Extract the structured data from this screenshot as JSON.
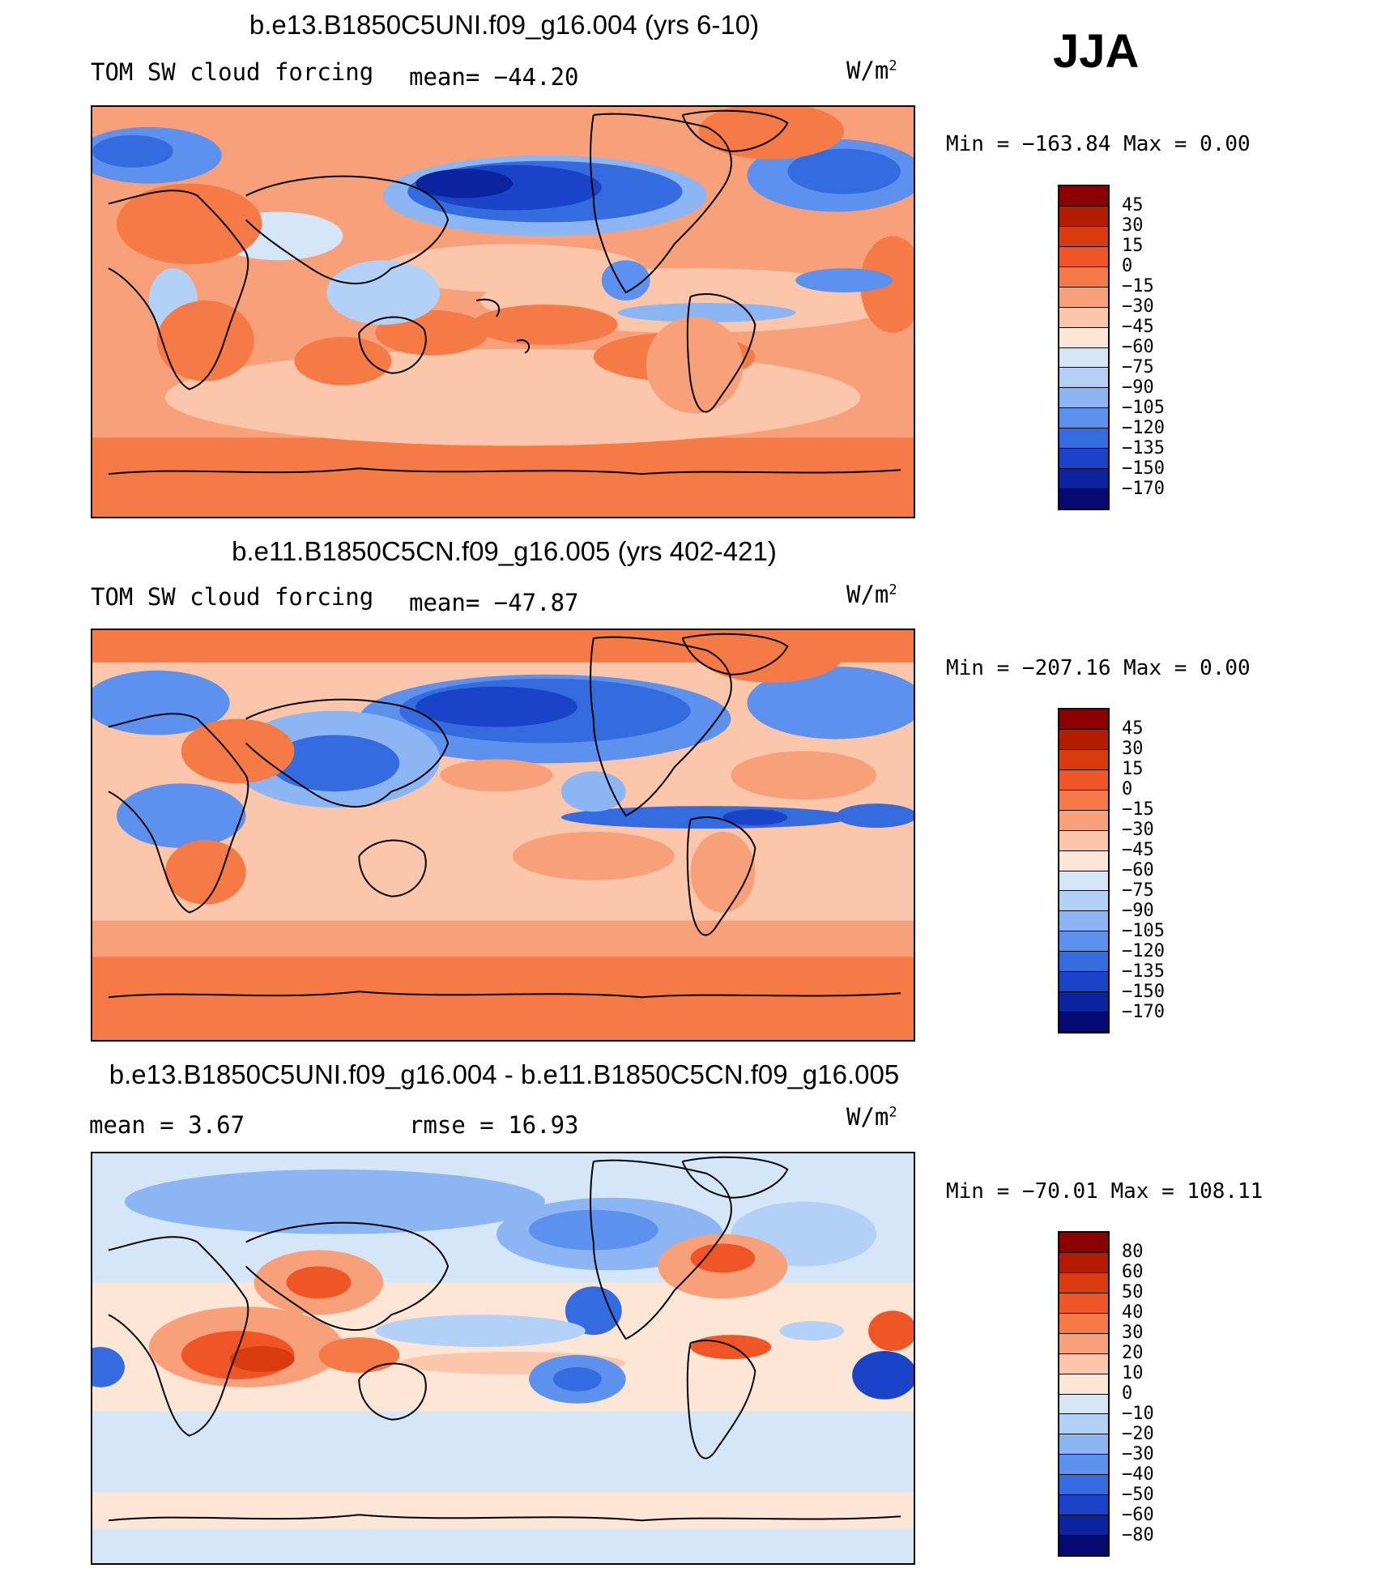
{
  "season": "JJA",
  "panels": [
    {
      "title": "b.e13.B1850C5UNI.f09_g16.004 (yrs 6-10)",
      "left_label": "TOM SW cloud forcing",
      "center_label": "mean= −44.20",
      "units_main": "W/m",
      "units_exp": "2",
      "minmax": "Min = −163.84 Max =   0.00",
      "colorbar": {
        "labels": [
          "45",
          "30",
          "15",
          "0",
          "−15",
          "−30",
          "−45",
          "−60",
          "−75",
          "−90",
          "−105",
          "−120",
          "−135",
          "−150",
          "−170"
        ],
        "colors": [
          "#8b0000",
          "#b41c00",
          "#d93a0e",
          "#f05526",
          "#f57a45",
          "#f7a07a",
          "#fbc6a9",
          "#fde6d6",
          "#d4e6f8",
          "#b3d1f7",
          "#8bb6f3",
          "#5c92ed",
          "#346bdf",
          "#1a44c8",
          "#0c239f",
          "#050a72"
        ]
      }
    },
    {
      "title": "b.e11.B1850C5CN.f09_g16.005 (yrs 402-421)",
      "left_label": "TOM SW cloud forcing",
      "center_label": "mean= −47.87",
      "units_main": "W/m",
      "units_exp": "2",
      "minmax": "Min = −207.16 Max =   0.00",
      "colorbar": {
        "labels": [
          "45",
          "30",
          "15",
          "0",
          "−15",
          "−30",
          "−45",
          "−60",
          "−75",
          "−90",
          "−105",
          "−120",
          "−135",
          "−150",
          "−170"
        ],
        "colors": [
          "#8b0000",
          "#b41c00",
          "#d93a0e",
          "#f05526",
          "#f57a45",
          "#f7a07a",
          "#fbc6a9",
          "#fde6d6",
          "#d4e6f8",
          "#b3d1f7",
          "#8bb6f3",
          "#5c92ed",
          "#346bdf",
          "#1a44c8",
          "#0c239f",
          "#050a72"
        ]
      }
    },
    {
      "title": "b.e13.B1850C5UNI.f09_g16.004 - b.e11.B1850C5CN.f09_g16.005",
      "left_label": "mean =    3.67",
      "center_label": "rmse =   16.93",
      "units_main": "W/m",
      "units_exp": "2",
      "minmax": "Min = −70.01 Max = 108.11",
      "colorbar": {
        "labels": [
          "80",
          "60",
          "50",
          "40",
          "30",
          "20",
          "10",
          "0",
          "−10",
          "−20",
          "−30",
          "−40",
          "−50",
          "−60",
          "−80"
        ],
        "colors": [
          "#8b0000",
          "#b41c00",
          "#d93a0e",
          "#f05526",
          "#f57a45",
          "#f7a07a",
          "#fbc6a9",
          "#fde6d6",
          "#d4e6f8",
          "#b3d1f7",
          "#8bb6f3",
          "#5c92ed",
          "#346bdf",
          "#1a44c8",
          "#0c239f",
          "#050a72"
        ]
      }
    }
  ]
}
